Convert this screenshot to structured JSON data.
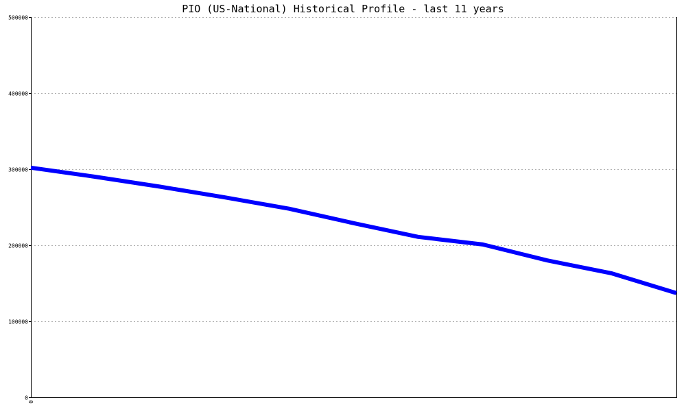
{
  "chart_data": {
    "type": "line",
    "title": "PIO (US-National) Historical Profile - last 11 years",
    "xlabel": "",
    "ylabel": "",
    "ylim": [
      0,
      500000
    ],
    "yticks": [
      "0",
      "100000",
      "200000",
      "300000",
      "400000",
      "500000"
    ],
    "xticks": [
      "0"
    ],
    "grid": true,
    "legend": "none",
    "series": [
      {
        "color": "#0000ff",
        "x": [
          0,
          1,
          2,
          3,
          4,
          5,
          6,
          7,
          8,
          9,
          10
        ],
        "values": [
          302000,
          290000,
          277000,
          263000,
          248000,
          229000,
          211000,
          201000,
          180000,
          163000,
          137000
        ]
      }
    ]
  },
  "colors": {
    "line": "#0000ff",
    "grid": "#b0b0b0",
    "axis": "#000000"
  }
}
